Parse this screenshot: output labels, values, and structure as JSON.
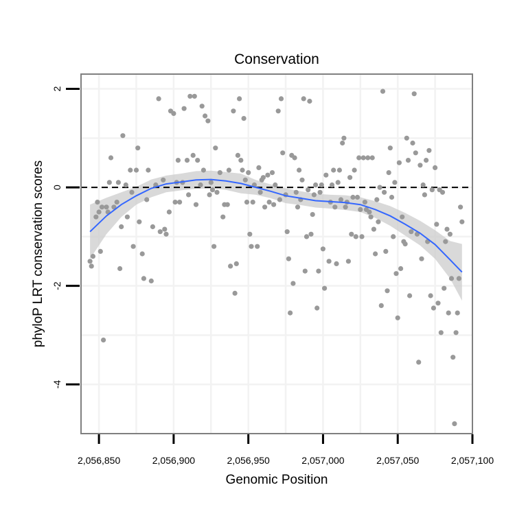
{
  "chart_data": {
    "type": "scatter",
    "title": "Conservation",
    "xlabel": "Genomic Position",
    "ylabel": "phyloP LRT conservation scores",
    "xlim": [
      2056838,
      2057100
    ],
    "ylim": [
      -5.0,
      2.3
    ],
    "grid": true,
    "x_ticks": [
      2056850,
      2056900,
      2056950,
      2057000,
      2057050,
      2057100
    ],
    "x_tick_labels": [
      "2,056,850",
      "2,056,900",
      "2,056,950",
      "2,057,000",
      "2,057,050",
      "2,057,100"
    ],
    "y_ticks": [
      2,
      0,
      -2,
      -4
    ],
    "y_tick_labels": [
      "2",
      "0",
      "-2",
      "-4"
    ],
    "reference_line": {
      "y": 0,
      "style": "dashed"
    },
    "points": [
      [
        2056844,
        -1.5
      ],
      [
        2056845,
        -1.6
      ],
      [
        2056846,
        -1.4
      ],
      [
        2056848,
        -0.6
      ],
      [
        2056849,
        -0.3
      ],
      [
        2056850,
        -0.5
      ],
      [
        2056851,
        -1.3
      ],
      [
        2056852,
        -0.4
      ],
      [
        2056853,
        -3.1
      ],
      [
        2056855,
        -0.4
      ],
      [
        2056856,
        -0.5
      ],
      [
        2056857,
        0.1
      ],
      [
        2056858,
        0.6
      ],
      [
        2056860,
        -0.4
      ],
      [
        2056862,
        -0.3
      ],
      [
        2056863,
        0.1
      ],
      [
        2056864,
        -1.65
      ],
      [
        2056865,
        -0.8
      ],
      [
        2056866,
        1.05
      ],
      [
        2056868,
        0.05
      ],
      [
        2056869,
        -0.6
      ],
      [
        2056871,
        0.35
      ],
      [
        2056872,
        -0.1
      ],
      [
        2056873,
        -1.2
      ],
      [
        2056875,
        0.35
      ],
      [
        2056876,
        0.8
      ],
      [
        2056877,
        -0.7
      ],
      [
        2056879,
        -1.35
      ],
      [
        2056880,
        -1.85
      ],
      [
        2056882,
        -0.25
      ],
      [
        2056883,
        0.35
      ],
      [
        2056885,
        -1.9
      ],
      [
        2056886,
        -0.8
      ],
      [
        2056888,
        0.05
      ],
      [
        2056890,
        1.8
      ],
      [
        2056891,
        -0.9
      ],
      [
        2056893,
        0.15
      ],
      [
        2056894,
        -0.85
      ],
      [
        2056895,
        -0.95
      ],
      [
        2056897,
        -0.5
      ],
      [
        2056898,
        1.55
      ],
      [
        2056900,
        1.5
      ],
      [
        2056901,
        -0.3
      ],
      [
        2056902,
        0.1
      ],
      [
        2056903,
        0.55
      ],
      [
        2056904,
        -0.3
      ],
      [
        2056906,
        0.1
      ],
      [
        2056907,
        1.6
      ],
      [
        2056909,
        0.55
      ],
      [
        2056910,
        -0.15
      ],
      [
        2056911,
        1.85
      ],
      [
        2056913,
        0.65
      ],
      [
        2056914,
        1.85
      ],
      [
        2056915,
        -0.35
      ],
      [
        2056916,
        0.55
      ],
      [
        2056918,
        0.05
      ],
      [
        2056919,
        1.65
      ],
      [
        2056920,
        0.35
      ],
      [
        2056921,
        1.45
      ],
      [
        2056923,
        1.35
      ],
      [
        2056924,
        -0.15
      ],
      [
        2056925,
        0.1
      ],
      [
        2056926,
        -0.05
      ],
      [
        2056927,
        -1.2
      ],
      [
        2056928,
        0.8
      ],
      [
        2056929,
        -0.1
      ],
      [
        2056931,
        0.3
      ],
      [
        2056933,
        -0.6
      ],
      [
        2056934,
        -0.35
      ],
      [
        2056936,
        -0.35
      ],
      [
        2056937,
        0.35
      ],
      [
        2056938,
        -1.6
      ],
      [
        2056940,
        1.55
      ],
      [
        2056941,
        -2.15
      ],
      [
        2056942,
        -1.55
      ],
      [
        2056943,
        0.65
      ],
      [
        2056944,
        1.8
      ],
      [
        2056945,
        0.55
      ],
      [
        2056946,
        0.35
      ],
      [
        2056947,
        1.4
      ],
      [
        2056948,
        0.15
      ],
      [
        2056949,
        -0.3
      ],
      [
        2056950,
        0.3
      ],
      [
        2056951,
        -0.95
      ],
      [
        2056952,
        -1.2
      ],
      [
        2056953,
        -0.3
      ],
      [
        2056954,
        0.05
      ],
      [
        2056956,
        -1.2
      ],
      [
        2056957,
        0.4
      ],
      [
        2056958,
        -0.1
      ],
      [
        2056959,
        0.15
      ],
      [
        2056960,
        0.2
      ],
      [
        2056961,
        -0.4
      ],
      [
        2056963,
        0.25
      ],
      [
        2056964,
        -0.3
      ],
      [
        2056966,
        0.3
      ],
      [
        2056967,
        -0.35
      ],
      [
        2056968,
        0.05
      ],
      [
        2056970,
        1.55
      ],
      [
        2056971,
        -0.25
      ],
      [
        2056972,
        1.8
      ],
      [
        2056973,
        0.7
      ],
      [
        2056975,
        -0.15
      ],
      [
        2056976,
        -0.9
      ],
      [
        2056977,
        -1.45
      ],
      [
        2056978,
        -2.55
      ],
      [
        2056979,
        0.65
      ],
      [
        2056980,
        -1.95
      ],
      [
        2056981,
        0.6
      ],
      [
        2056982,
        -0.1
      ],
      [
        2056983,
        -0.4
      ],
      [
        2056984,
        0.35
      ],
      [
        2056985,
        -0.25
      ],
      [
        2056986,
        0.15
      ],
      [
        2056987,
        1.8
      ],
      [
        2056988,
        -1.7
      ],
      [
        2056989,
        -1.0
      ],
      [
        2056990,
        -0.05
      ],
      [
        2056991,
        1.75
      ],
      [
        2056992,
        -0.95
      ],
      [
        2056993,
        -0.55
      ],
      [
        2056994,
        -0.15
      ],
      [
        2056995,
        0.05
      ],
      [
        2056996,
        -2.45
      ],
      [
        2056997,
        -1.7
      ],
      [
        2056998,
        -0.1
      ],
      [
        2056999,
        0.05
      ],
      [
        2057000,
        -1.25
      ],
      [
        2057001,
        -2.05
      ],
      [
        2057002,
        0.25
      ],
      [
        2057004,
        -1.5
      ],
      [
        2057005,
        -0.3
      ],
      [
        2057006,
        0.05
      ],
      [
        2057007,
        0.35
      ],
      [
        2057008,
        -0.4
      ],
      [
        2057009,
        -1.55
      ],
      [
        2057010,
        0.1
      ],
      [
        2057011,
        0.35
      ],
      [
        2057012,
        -0.25
      ],
      [
        2057013,
        0.9
      ],
      [
        2057014,
        1.0
      ],
      [
        2057015,
        -0.4
      ],
      [
        2057016,
        -0.3
      ],
      [
        2057017,
        -1.5
      ],
      [
        2057018,
        0.2
      ],
      [
        2057019,
        -0.95
      ],
      [
        2057020,
        -0.2
      ],
      [
        2057021,
        0.35
      ],
      [
        2057022,
        -1.0
      ],
      [
        2057023,
        -0.2
      ],
      [
        2057024,
        0.6
      ],
      [
        2057025,
        -0.45
      ],
      [
        2057026,
        -1.0
      ],
      [
        2057027,
        0.6
      ],
      [
        2057028,
        -0.3
      ],
      [
        2057029,
        -0.45
      ],
      [
        2057030,
        0.6
      ],
      [
        2057031,
        -0.5
      ],
      [
        2057032,
        -0.6
      ],
      [
        2057033,
        0.6
      ],
      [
        2057034,
        -0.85
      ],
      [
        2057035,
        -1.35
      ],
      [
        2057036,
        -0.25
      ],
      [
        2057037,
        -0.7
      ],
      [
        2057038,
        0.0
      ],
      [
        2057039,
        -2.4
      ],
      [
        2057040,
        1.95
      ],
      [
        2057041,
        -0.1
      ],
      [
        2057042,
        -1.3
      ],
      [
        2057043,
        -2.1
      ],
      [
        2057044,
        0.3
      ],
      [
        2057045,
        0.8
      ],
      [
        2057046,
        -0.2
      ],
      [
        2057047,
        -1.0
      ],
      [
        2057048,
        0.1
      ],
      [
        2057049,
        -1.75
      ],
      [
        2057050,
        -2.65
      ],
      [
        2057051,
        0.5
      ],
      [
        2057052,
        -1.65
      ],
      [
        2057053,
        -0.6
      ],
      [
        2057054,
        -1.1
      ],
      [
        2057055,
        -1.15
      ],
      [
        2057056,
        1.0
      ],
      [
        2057057,
        0.55
      ],
      [
        2057058,
        -2.2
      ],
      [
        2057059,
        -0.9
      ],
      [
        2057060,
        0.9
      ],
      [
        2057061,
        1.9
      ],
      [
        2057062,
        0.7
      ],
      [
        2057063,
        -0.95
      ],
      [
        2057064,
        -3.55
      ],
      [
        2057065,
        0.45
      ],
      [
        2057066,
        -1.45
      ],
      [
        2057067,
        0.05
      ],
      [
        2057068,
        -0.15
      ],
      [
        2057069,
        0.55
      ],
      [
        2057070,
        -1.1
      ],
      [
        2057071,
        0.75
      ],
      [
        2057072,
        -2.2
      ],
      [
        2057073,
        -0.05
      ],
      [
        2057074,
        -2.45
      ],
      [
        2057075,
        0.4
      ],
      [
        2057076,
        -0.75
      ],
      [
        2057077,
        -2.35
      ],
      [
        2057078,
        -0.05
      ],
      [
        2057079,
        -2.95
      ],
      [
        2057080,
        -0.1
      ],
      [
        2057081,
        -2.05
      ],
      [
        2057082,
        -1.1
      ],
      [
        2057083,
        -0.85
      ],
      [
        2057084,
        -2.55
      ],
      [
        2057085,
        -0.95
      ],
      [
        2057086,
        -1.85
      ],
      [
        2057087,
        -3.45
      ],
      [
        2057088,
        -4.8
      ],
      [
        2057089,
        -2.95
      ],
      [
        2057090,
        -2.55
      ],
      [
        2057091,
        -1.85
      ],
      [
        2057092,
        -0.4
      ],
      [
        2057093,
        -0.7
      ]
    ],
    "smooth": {
      "method": "loess",
      "x": [
        2056844,
        2056855,
        2056865,
        2056875,
        2056885,
        2056895,
        2056905,
        2056915,
        2056925,
        2056935,
        2056945,
        2056955,
        2056965,
        2056975,
        2056985,
        2056995,
        2057005,
        2057015,
        2057025,
        2057035,
        2057045,
        2057055,
        2057065,
        2057075,
        2057085,
        2057093
      ],
      "y": [
        -0.9,
        -0.58,
        -0.35,
        -0.17,
        -0.02,
        0.07,
        0.11,
        0.15,
        0.16,
        0.13,
        0.08,
        0.0,
        -0.08,
        -0.17,
        -0.22,
        -0.27,
        -0.29,
        -0.31,
        -0.35,
        -0.45,
        -0.58,
        -0.75,
        -0.93,
        -1.16,
        -1.47,
        -1.72
      ],
      "lower": [
        -1.45,
        -0.95,
        -0.6,
        -0.35,
        -0.2,
        -0.1,
        -0.06,
        -0.03,
        -0.02,
        -0.05,
        -0.12,
        -0.15,
        -0.22,
        -0.32,
        -0.36,
        -0.41,
        -0.43,
        -0.46,
        -0.5,
        -0.62,
        -0.78,
        -0.98,
        -1.18,
        -1.45,
        -1.85,
        -2.3
      ],
      "upper": [
        -0.35,
        -0.21,
        -0.1,
        0.01,
        0.16,
        0.24,
        0.28,
        0.33,
        0.34,
        0.31,
        0.28,
        0.15,
        0.06,
        -0.02,
        -0.08,
        -0.13,
        -0.15,
        -0.16,
        -0.2,
        -0.28,
        -0.38,
        -0.52,
        -0.68,
        -0.87,
        -1.09,
        -1.15
      ]
    },
    "colors": {
      "points": "#999999",
      "smooth_line": "#3366ff",
      "ribbon": "#cccccc",
      "grid": "#f2f2f2",
      "panel_border": "#7f7f7f",
      "axis_ticks": "#000000"
    }
  }
}
